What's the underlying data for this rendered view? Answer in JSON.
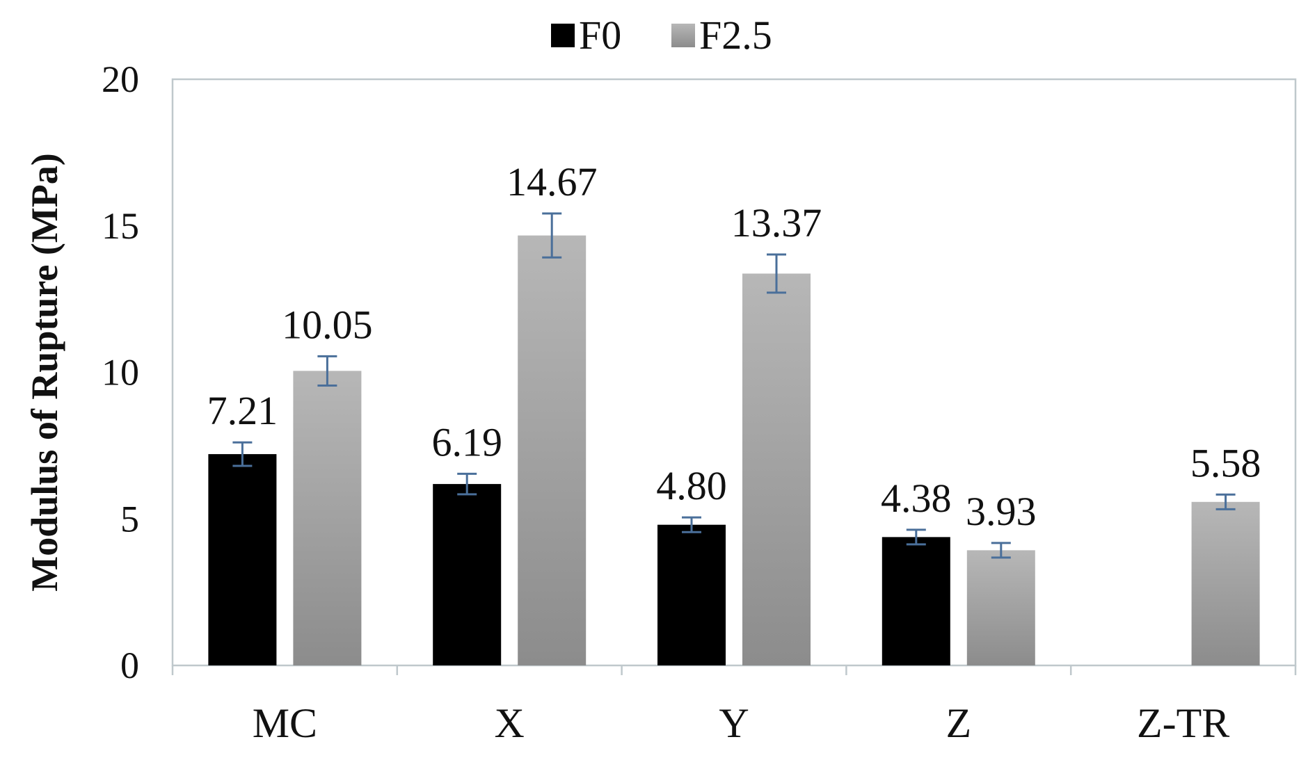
{
  "chart_data": {
    "type": "bar",
    "title": "",
    "xlabel": "",
    "ylabel": "Modulus of Rupture (MPa)",
    "categories": [
      "MC",
      "X",
      "Y",
      "Z",
      "Z-TR"
    ],
    "series": [
      {
        "name": "F0",
        "color": "#000000",
        "values": [
          7.21,
          6.19,
          4.8,
          4.38,
          null
        ],
        "labels": [
          "7.21",
          "6.19",
          "4.80",
          "4.38",
          ""
        ],
        "error": [
          0.4,
          0.35,
          0.25,
          0.25,
          null
        ]
      },
      {
        "name": "F2.5",
        "color_top": "#b7b7b7",
        "color_bottom": "#8c8c8c",
        "values": [
          10.05,
          14.67,
          13.37,
          3.93,
          5.58
        ],
        "labels": [
          "10.05",
          "14.67",
          "13.37",
          "3.93",
          "5.58"
        ],
        "error": [
          0.5,
          0.75,
          0.65,
          0.25,
          0.25
        ]
      }
    ],
    "ylim": [
      0,
      20
    ],
    "yticks": [
      0,
      5,
      10,
      15,
      20
    ],
    "grid": false,
    "legend_position": "top-center",
    "error_bar_color": "#4a6f9a",
    "axis_color": "#bfc8cc"
  }
}
